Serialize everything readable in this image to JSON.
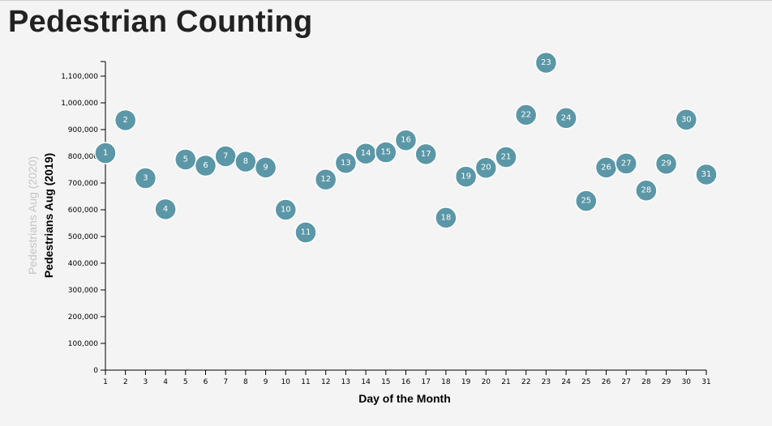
{
  "page": {
    "title": "Pedestrian Counting"
  },
  "chart_data": {
    "type": "scatter",
    "xlabel": "Day of the Month",
    "ylabel": "Pedestrians Aug (2019)",
    "ylabel_alt": "Pedestrians Aug (2020)",
    "xlim": [
      1,
      31
    ],
    "ylim": [
      0,
      1100000
    ],
    "x_ticks": [
      1,
      2,
      3,
      4,
      5,
      6,
      7,
      8,
      9,
      10,
      11,
      12,
      13,
      14,
      15,
      16,
      17,
      18,
      19,
      20,
      21,
      22,
      23,
      24,
      25,
      26,
      27,
      28,
      29,
      30,
      31
    ],
    "y_ticks": [
      0,
      100000,
      200000,
      300000,
      400000,
      500000,
      600000,
      700000,
      800000,
      900000,
      1000000,
      1100000
    ],
    "y_tick_labels": [
      "0",
      "100,000",
      "200,000",
      "300,000",
      "400,000",
      "500,000",
      "600,000",
      "700,000",
      "800,000",
      "900,000",
      "1,000,000",
      "1,100,000"
    ],
    "grid": false,
    "point_color": "#5b97a6",
    "points": [
      {
        "x": 1,
        "y": 812000,
        "label": "1"
      },
      {
        "x": 2,
        "y": 935000,
        "label": "2"
      },
      {
        "x": 3,
        "y": 718000,
        "label": "3"
      },
      {
        "x": 4,
        "y": 602000,
        "label": "4"
      },
      {
        "x": 5,
        "y": 788000,
        "label": "5"
      },
      {
        "x": 6,
        "y": 765000,
        "label": "6"
      },
      {
        "x": 7,
        "y": 800000,
        "label": "7"
      },
      {
        "x": 8,
        "y": 780000,
        "label": "8"
      },
      {
        "x": 9,
        "y": 758000,
        "label": "9"
      },
      {
        "x": 10,
        "y": 600000,
        "label": "10"
      },
      {
        "x": 11,
        "y": 515000,
        "label": "11"
      },
      {
        "x": 12,
        "y": 713000,
        "label": "12"
      },
      {
        "x": 13,
        "y": 775000,
        "label": "13"
      },
      {
        "x": 14,
        "y": 810000,
        "label": "14"
      },
      {
        "x": 15,
        "y": 815000,
        "label": "15"
      },
      {
        "x": 16,
        "y": 860000,
        "label": "16"
      },
      {
        "x": 17,
        "y": 808000,
        "label": "17"
      },
      {
        "x": 18,
        "y": 570000,
        "label": "18"
      },
      {
        "x": 19,
        "y": 724000,
        "label": "19"
      },
      {
        "x": 20,
        "y": 757000,
        "label": "20"
      },
      {
        "x": 21,
        "y": 797000,
        "label": "21"
      },
      {
        "x": 22,
        "y": 955000,
        "label": "22"
      },
      {
        "x": 23,
        "y": 1150000,
        "label": "23"
      },
      {
        "x": 24,
        "y": 943000,
        "label": "24"
      },
      {
        "x": 25,
        "y": 633000,
        "label": "25"
      },
      {
        "x": 26,
        "y": 758000,
        "label": "26"
      },
      {
        "x": 27,
        "y": 773000,
        "label": "27"
      },
      {
        "x": 28,
        "y": 672000,
        "label": "28"
      },
      {
        "x": 29,
        "y": 772000,
        "label": "29"
      },
      {
        "x": 30,
        "y": 937000,
        "label": "30"
      },
      {
        "x": 31,
        "y": 732000,
        "label": "31"
      }
    ]
  }
}
